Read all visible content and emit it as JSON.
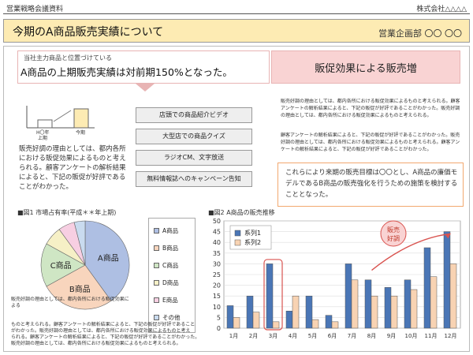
{
  "header": {
    "left": "営業戦略会議資料",
    "right": "株式会社△△△△"
  },
  "title": {
    "main": "今期のA商品販売実績について",
    "department": "営業企画部 〇〇 〇〇"
  },
  "highlight": {
    "small": "当社主力商品と位置づけている",
    "main": "A商品の上期販売実績は対前期150%となった。",
    "right": "販促効果による販売増"
  },
  "mini_chart": {
    "categories": [
      "H〇年\n上期",
      "今期"
    ],
    "label_prev": "H〇年",
    "label_prev2": "上期",
    "label_now": "今期"
  },
  "left_text": "販売好調の理由としては、都内各所における販促効果によるものと考えられる。顧客アンケートの解析結果によると、下記の販促が好評であることがわかった。",
  "promo_buttons": [
    "店頭での商品紹介ビデオ",
    "大型店での商品クイズ",
    "ラジオCM、文字放送",
    "無料情報誌へのキャンペーン告知"
  ],
  "right_paragraphs": [
    "販売好調の理由としては、都内各所における販促効果によるものと考えられる。顧客アンケートの解析結果によると、下記の販促が好評であることがわかった。販売好調の理由としては、都内各所における販促効果によるものと考えられる。",
    "顧客アンケートの解析結果によると、下記の販促が好評であることがわかった。販売好調の理由としては、都内各所における販促効果によるものと考えられる。顧客アンケートの解析結果によると、下記の販促が好評であることがわかった。"
  ],
  "conclusion": "これらにより来期の販売目標は〇〇とし、A商品の廉価モデルであるB商品の販売強化を行うための施策を検討することとなった。",
  "figure1": {
    "label": "■図1 市場占有率(平成＊＊年上期)"
  },
  "figure2": {
    "label": "■図2 A商品の販売推移",
    "callout": "販売\n好調",
    "callout_l1": "販売",
    "callout_l2": "好調"
  },
  "pie_text": "販売好調の理由としては、都内各所における販促効果による",
  "bottom_notes": [
    "ものと考えられる。顧客アンケートの解析結果によると、下記の販促が好評であること",
    "がわかった。販売好調の理由としては、都内各所における販促効果によるものと考え",
    "られる。顧客アンケートの解析結果によると、下記の販促が好評であることがわかった。",
    "販売好調の理由としては、都内各所における販促効果によるものと考えられる。"
  ],
  "chart_data": [
    {
      "type": "pie",
      "title": "市場占有率(平成＊＊年上期)",
      "labels": [
        "A商品",
        "B商品",
        "C商品",
        "D商品",
        "E商品",
        "その他"
      ],
      "values": [
        40,
        27,
        16,
        7,
        6,
        4
      ],
      "colors": [
        "#aebfe3",
        "#f8d5bd",
        "#cfe6c4",
        "#f6f0c6",
        "#f7cfe2",
        "#c9dbef"
      ]
    },
    {
      "type": "bar",
      "title": "A商品の販売推移",
      "categories": [
        "1月",
        "2月",
        "3月",
        "4月",
        "5月",
        "6月",
        "7月",
        "8月",
        "9月",
        "10月",
        "11月",
        "12月"
      ],
      "series": [
        {
          "name": "系列1",
          "values": [
            10.5,
            15,
            30,
            8,
            15,
            6,
            30,
            22.5,
            19,
            22.5,
            37.5,
            45
          ],
          "color": "#4a76b6"
        },
        {
          "name": "系列2",
          "values": [
            5,
            7.5,
            3,
            15,
            4,
            3,
            22.5,
            15,
            15,
            18,
            24,
            30
          ],
          "color": "#f8d3b3"
        }
      ],
      "ylim": [
        0,
        50
      ],
      "yticks": [
        0,
        5,
        10,
        15,
        20,
        25,
        30,
        35,
        40,
        45,
        50
      ],
      "legend": "top-left"
    }
  ]
}
